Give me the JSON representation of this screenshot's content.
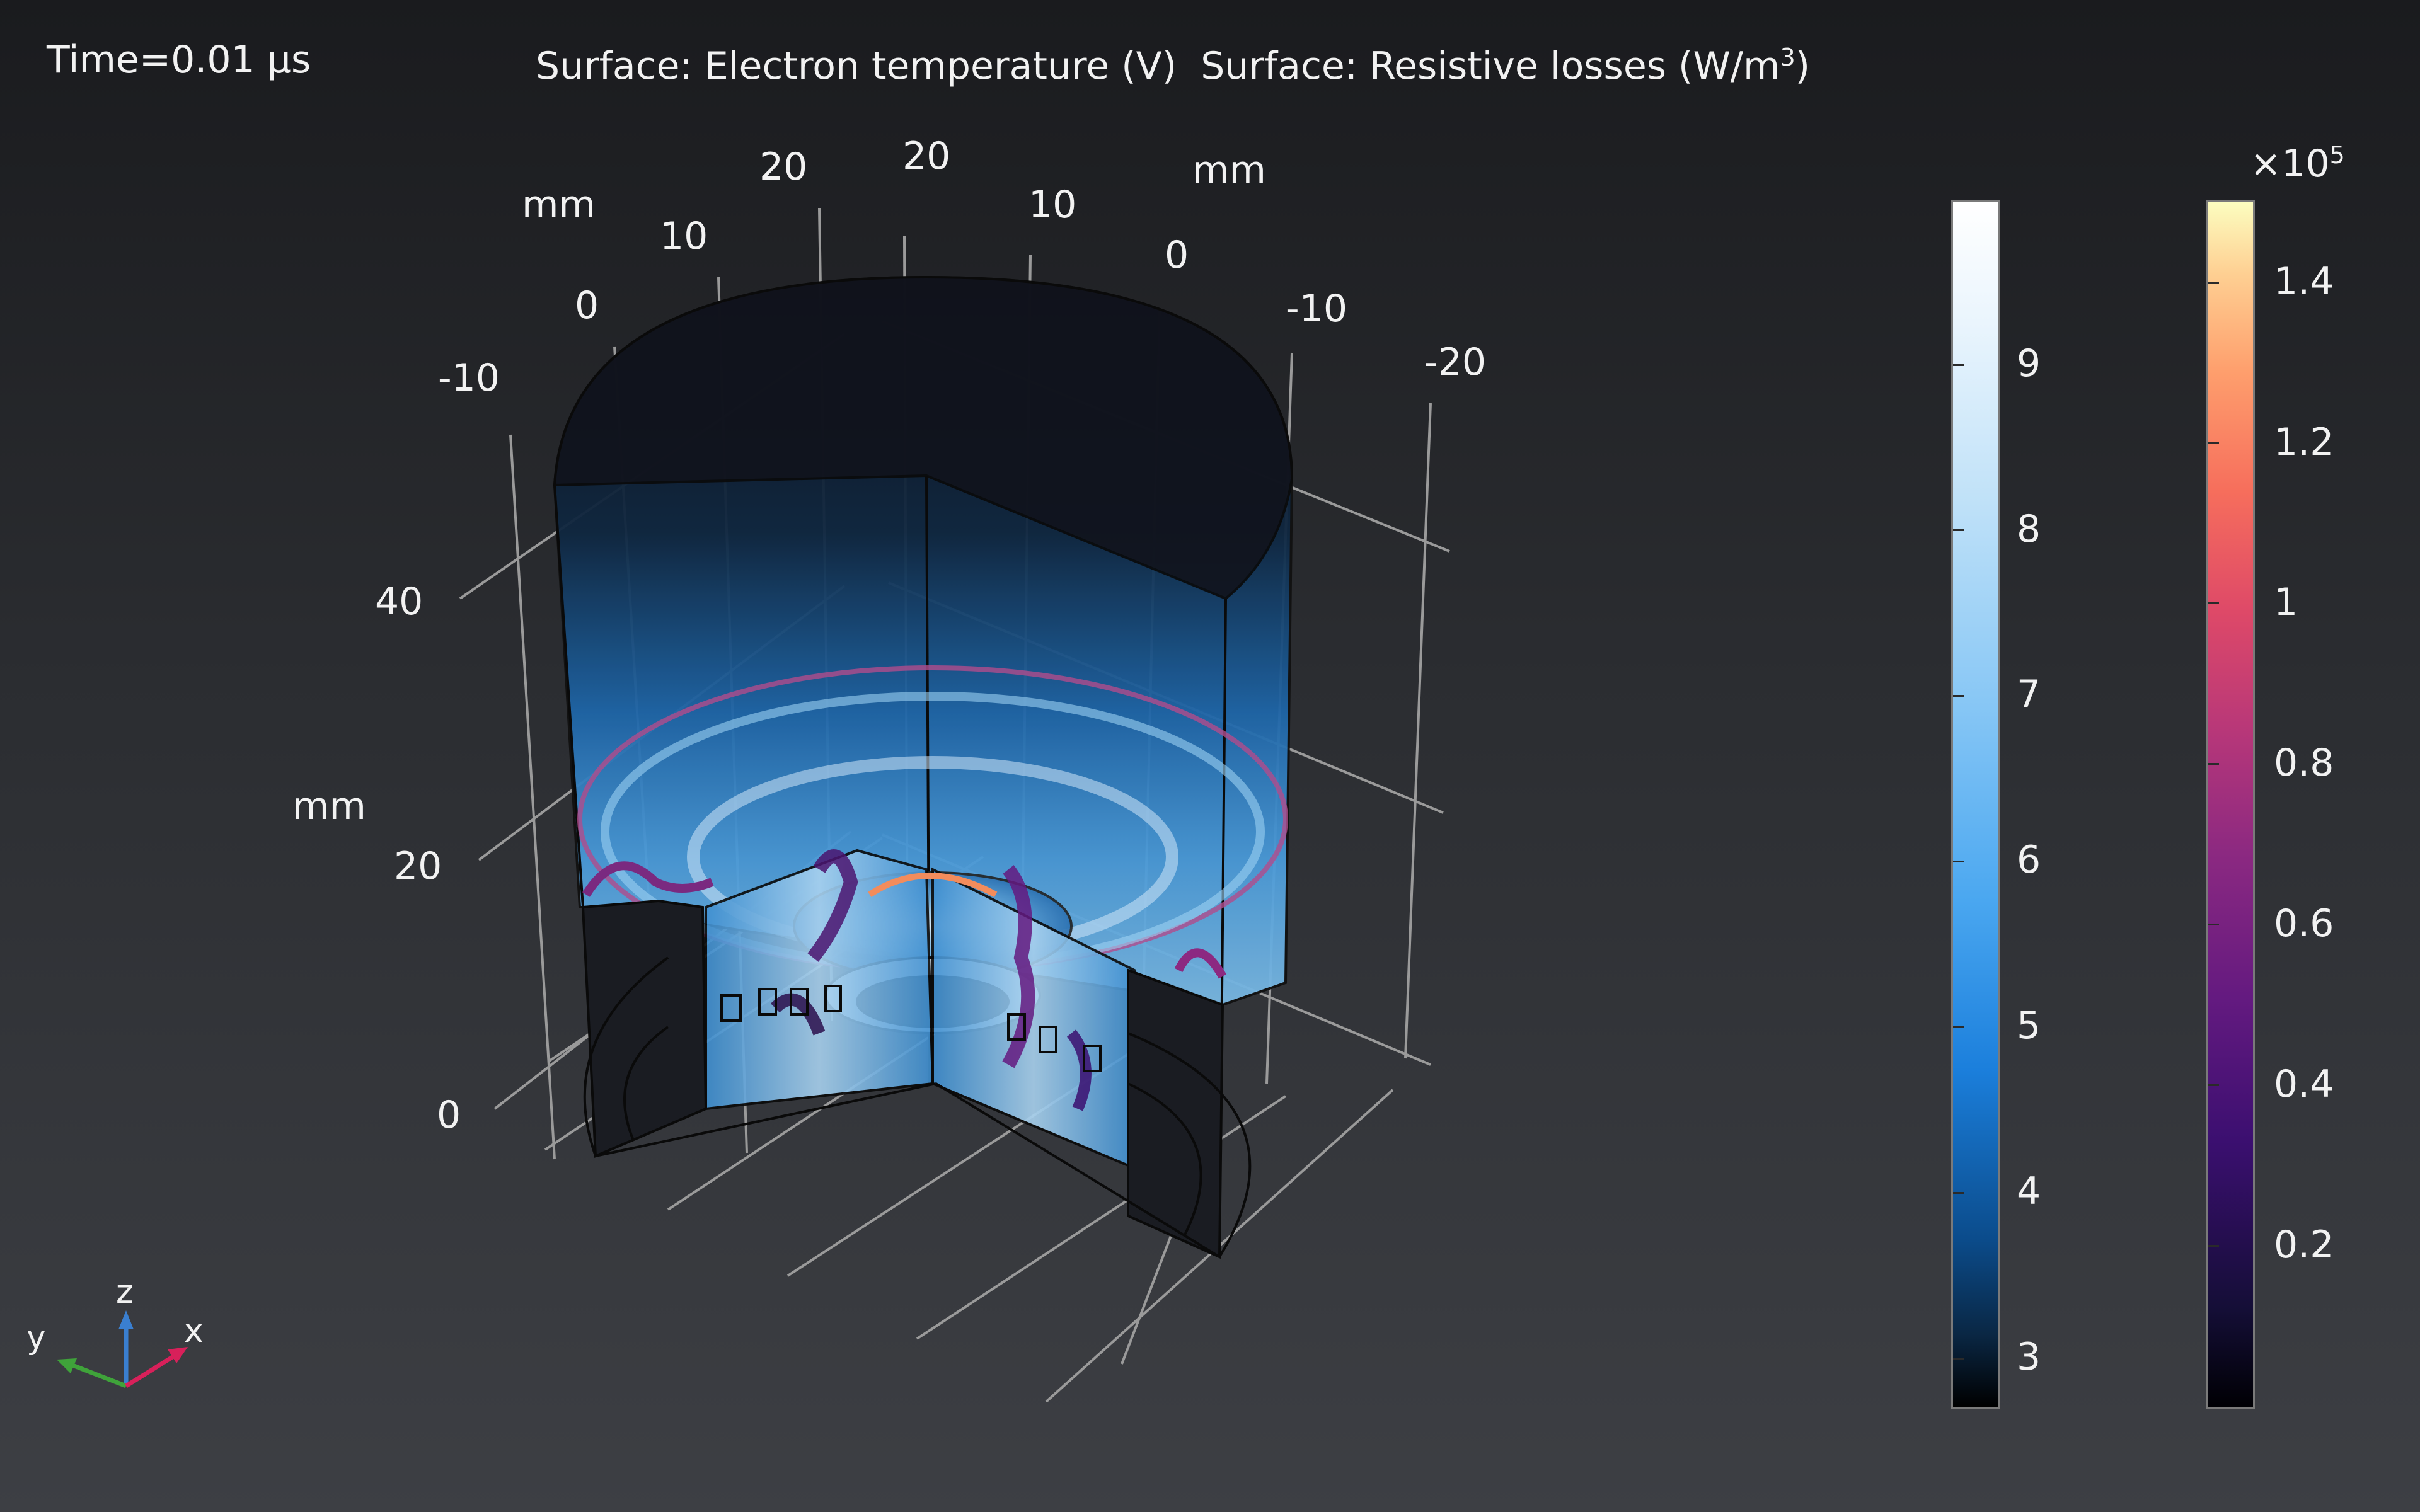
{
  "time_label": "Time=0.01 µs",
  "title": {
    "part1": "Surface: Electron temperature (V)",
    "part2_prefix": "Surface: Resistive losses (W/m",
    "part2_exp": "3",
    "part2_suffix": ")"
  },
  "axes": {
    "x_unit": "mm",
    "y_unit": "mm",
    "z_unit": "mm",
    "x_ticks": [
      "20",
      "10",
      "0",
      "-10",
      "-20"
    ],
    "y_ticks": [
      "-10",
      "0",
      "10",
      "20"
    ],
    "z_ticks": [
      "40",
      "20",
      "0"
    ]
  },
  "colorbar_temperature": {
    "ticks": [
      "9",
      "8",
      "7",
      "6",
      "5",
      "4",
      "3"
    ],
    "colormap": "blue-white"
  },
  "colorbar_losses": {
    "multiplier": "×10",
    "multiplier_exp": "5",
    "ticks": [
      "1.4",
      "1.2",
      "1",
      "0.8",
      "0.6",
      "0.4",
      "0.2"
    ],
    "colormap": "magma"
  },
  "triad": {
    "x": "x",
    "y": "y",
    "z": "z",
    "x_color": "#d8205a",
    "y_color": "#3fa33a",
    "z_color": "#3a7fd0"
  }
}
